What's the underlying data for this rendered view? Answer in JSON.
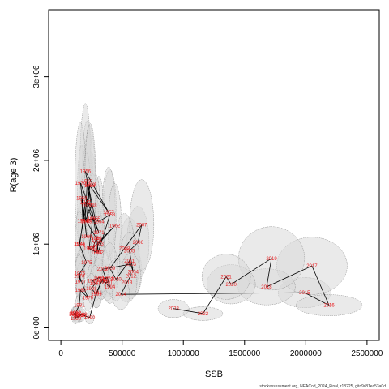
{
  "chart_data": {
    "type": "scatter",
    "xlabel": "SSB",
    "ylabel": "R(age 3)",
    "xlim": [
      -100000,
      2600000
    ],
    "ylim": [
      -150000,
      3800000
    ],
    "x_ticks": [
      0,
      500000,
      1000000,
      1500000,
      2000000,
      2500000
    ],
    "x_tick_labels": [
      "0",
      "500000",
      "1000000",
      "1500000",
      "2000000",
      "2500000"
    ],
    "y_ticks": [
      0,
      1000000,
      2000000,
      3000000
    ],
    "y_tick_labels": [
      "0e+00",
      "1e+06",
      "2e+06",
      "3e+06"
    ],
    "grid": false,
    "legend": "none",
    "colors": {
      "line": "#000000",
      "label": "#e8191c",
      "ellipse_fill": "#d9d9d9",
      "ellipse_stroke": "#8c8c8c"
    },
    "footer": "stockassessment.org, NEACod_2024_Final, r18225, gitc9c81ec53a0d",
    "points": [
      {
        "year": "1946",
        "ssb": 155000,
        "rec": 1000000,
        "sx": 20000,
        "sy": 250000
      },
      {
        "year": "1947",
        "ssb": 200000,
        "rec": 1500000,
        "sx": 20000,
        "sy": 350000
      },
      {
        "year": "1948",
        "ssb": 250000,
        "rec": 1460000,
        "sx": 25000,
        "sy": 350000
      },
      {
        "year": "1949",
        "ssb": 200000,
        "rec": 1280000,
        "sx": 20000,
        "sy": 300000
      },
      {
        "year": "1950",
        "ssb": 215000,
        "rec": 1750000,
        "sx": 25000,
        "sy": 400000
      },
      {
        "year": "1951",
        "ssb": 295000,
        "rec": 1050000,
        "sx": 25000,
        "sy": 250000
      },
      {
        "year": "1952",
        "ssb": 305000,
        "rec": 900000,
        "sx": 25000,
        "sy": 200000
      },
      {
        "year": "1953",
        "ssb": 400000,
        "rec": 1350000,
        "sx": 30000,
        "sy": 300000
      },
      {
        "year": "1954",
        "ssb": 310000,
        "rec": 1270000,
        "sx": 25000,
        "sy": 300000
      },
      {
        "year": "1955",
        "ssb": 280000,
        "rec": 1300000,
        "sx": 25000,
        "sy": 300000
      },
      {
        "year": "1956",
        "ssb": 200000,
        "rec": 1870000,
        "sx": 25000,
        "sy": 450000
      },
      {
        "year": "1957",
        "ssb": 390000,
        "rec": 1380000,
        "sx": 30000,
        "sy": 300000
      },
      {
        "year": "1958",
        "ssb": 235000,
        "rec": 1700000,
        "sx": 25000,
        "sy": 400000
      },
      {
        "year": "1959",
        "ssb": 210000,
        "rec": 1270000,
        "sx": 20000,
        "sy": 300000
      },
      {
        "year": "1960",
        "ssb": 290000,
        "rec": 1070000,
        "sx": 25000,
        "sy": 250000
      },
      {
        "year": "1961",
        "ssb": 260000,
        "rec": 950000,
        "sx": 25000,
        "sy": 220000
      },
      {
        "year": "1962",
        "ssb": 440000,
        "rec": 1220000,
        "sx": 30000,
        "sy": 280000
      },
      {
        "year": "1963",
        "ssb": 305000,
        "rec": 1000000,
        "sx": 25000,
        "sy": 220000
      },
      {
        "year": "1964",
        "ssb": 290000,
        "rec": 900000,
        "sx": 25000,
        "sy": 200000
      },
      {
        "year": "1965",
        "ssb": 230000,
        "rec": 950000,
        "sx": 25000,
        "sy": 220000
      },
      {
        "year": "1966",
        "ssb": 260000,
        "rec": 1300000,
        "sx": 25000,
        "sy": 300000
      },
      {
        "year": "1967",
        "ssb": 180000,
        "rec": 1280000,
        "sx": 20000,
        "sy": 300000
      },
      {
        "year": "1968",
        "ssb": 170000,
        "rec": 1550000,
        "sx": 20000,
        "sy": 350000
      },
      {
        "year": "1969",
        "ssb": 210000,
        "rec": 1090000,
        "sx": 20000,
        "sy": 250000
      },
      {
        "year": "1970",
        "ssb": 160000,
        "rec": 1730000,
        "sx": 25000,
        "sy": 400000
      },
      {
        "year": "1971",
        "ssb": 310000,
        "rec": 1140000,
        "sx": 25000,
        "sy": 250000
      },
      {
        "year": "1972",
        "ssb": 210000,
        "rec": 1460000,
        "sx": 20000,
        "sy": 350000
      },
      {
        "year": "1973",
        "ssb": 240000,
        "rec": 1720000,
        "sx": 25000,
        "sy": 400000
      },
      {
        "year": "1974",
        "ssb": 150000,
        "rec": 1000000,
        "sx": 20000,
        "sy": 220000
      },
      {
        "year": "1975",
        "ssb": 210000,
        "rec": 780000,
        "sx": 20000,
        "sy": 180000
      },
      {
        "year": "1976",
        "ssb": 155000,
        "rec": 650000,
        "sx": 20000,
        "sy": 150000
      },
      {
        "year": "1977",
        "ssb": 160000,
        "rec": 550000,
        "sx": 20000,
        "sy": 120000
      },
      {
        "year": "1978",
        "ssb": 150000,
        "rec": 620000,
        "sx": 20000,
        "sy": 140000
      },
      {
        "year": "1979",
        "ssb": 220000,
        "rec": 360000,
        "sx": 20000,
        "sy": 90000
      },
      {
        "year": "1980",
        "ssb": 160000,
        "rec": 450000,
        "sx": 20000,
        "sy": 100000
      },
      {
        "year": "1981",
        "ssb": 150000,
        "rec": 270000,
        "sx": 18000,
        "sy": 70000
      },
      {
        "year": "1982",
        "ssb": 120000,
        "rec": 180000,
        "sx": 15000,
        "sy": 50000
      },
      {
        "year": "1983",
        "ssb": 110000,
        "rec": 160000,
        "sx": 15000,
        "sy": 45000
      },
      {
        "year": "1984",
        "ssb": 110000,
        "rec": 170000,
        "sx": 15000,
        "sy": 45000
      },
      {
        "year": "1985",
        "ssb": 140000,
        "rec": 130000,
        "sx": 18000,
        "sy": 40000
      },
      {
        "year": "1986",
        "ssb": 160000,
        "rec": 150000,
        "sx": 18000,
        "sy": 40000
      },
      {
        "year": "1987",
        "ssb": 120000,
        "rec": 170000,
        "sx": 15000,
        "sy": 45000
      },
      {
        "year": "1988",
        "ssb": 120000,
        "rec": 110000,
        "sx": 15000,
        "sy": 35000
      },
      {
        "year": "1989",
        "ssb": 170000,
        "rec": 160000,
        "sx": 18000,
        "sy": 45000
      },
      {
        "year": "1990",
        "ssb": 235000,
        "rec": 120000,
        "sx": 20000,
        "sy": 40000
      },
      {
        "year": "1991",
        "ssb": 290000,
        "rec": 420000,
        "sx": 25000,
        "sy": 100000
      },
      {
        "year": "1992",
        "ssb": 340000,
        "rec": 580000,
        "sx": 28000,
        "sy": 130000
      },
      {
        "year": "1993",
        "ssb": 380000,
        "rec": 600000,
        "sx": 30000,
        "sy": 130000
      },
      {
        "year": "1994",
        "ssb": 400000,
        "rec": 490000,
        "sx": 30000,
        "sy": 110000
      },
      {
        "year": "1995",
        "ssb": 310000,
        "rec": 600000,
        "sx": 25000,
        "sy": 130000
      },
      {
        "year": "1996",
        "ssb": 260000,
        "rec": 560000,
        "sx": 25000,
        "sy": 120000
      },
      {
        "year": "1997",
        "ssb": 280000,
        "rec": 530000,
        "sx": 25000,
        "sy": 120000
      },
      {
        "year": "1998",
        "ssb": 250000,
        "rec": 470000,
        "sx": 22000,
        "sy": 100000
      },
      {
        "year": "1999",
        "ssb": 290000,
        "rec": 400000,
        "sx": 25000,
        "sy": 90000
      },
      {
        "year": "2000",
        "ssb": 330000,
        "rec": 550000,
        "sx": 28000,
        "sy": 120000
      },
      {
        "year": "2001",
        "ssb": 380000,
        "rec": 540000,
        "sx": 30000,
        "sy": 120000
      },
      {
        "year": "2002",
        "ssb": 340000,
        "rec": 700000,
        "sx": 30000,
        "sy": 150000
      },
      {
        "year": "2003",
        "ssb": 570000,
        "rec": 760000,
        "sx": 40000,
        "sy": 180000
      },
      {
        "year": "2004",
        "ssb": 590000,
        "rec": 670000,
        "sx": 40000,
        "sy": 160000
      },
      {
        "year": "2005",
        "ssb": 560000,
        "rec": 920000,
        "sx": 45000,
        "sy": 220000
      },
      {
        "year": "2006",
        "ssb": 630000,
        "rec": 1020000,
        "sx": 50000,
        "sy": 240000
      },
      {
        "year": "2007",
        "ssb": 660000,
        "rec": 1230000,
        "sx": 55000,
        "sy": 300000
      },
      {
        "year": "2008",
        "ssb": 520000,
        "rec": 950000,
        "sx": 45000,
        "sy": 230000
      },
      {
        "year": "2009",
        "ssb": 400000,
        "rec": 710000,
        "sx": 35000,
        "sy": 170000
      },
      {
        "year": "2010",
        "ssb": 450000,
        "rec": 580000,
        "sx": 38000,
        "sy": 140000
      },
      {
        "year": "2011",
        "ssb": 560000,
        "rec": 800000,
        "sx": 45000,
        "sy": 190000
      },
      {
        "year": "2012",
        "ssb": 570000,
        "rec": 620000,
        "sx": 45000,
        "sy": 150000
      },
      {
        "year": "2013",
        "ssb": 540000,
        "rec": 540000,
        "sx": 45000,
        "sy": 130000
      },
      {
        "year": "2014",
        "ssb": 490000,
        "rec": 400000,
        "sx": 40000,
        "sy": 100000
      },
      {
        "year": "2015",
        "ssb": 1990000,
        "rec": 420000,
        "sx": 120000,
        "sy": 100000
      },
      {
        "year": "2016",
        "ssb": 2190000,
        "rec": 270000,
        "sx": 150000,
        "sy": 70000
      },
      {
        "year": "2017",
        "ssb": 2050000,
        "rec": 740000,
        "sx": 160000,
        "sy": 190000
      },
      {
        "year": "2018",
        "ssb": 1680000,
        "rec": 490000,
        "sx": 130000,
        "sy": 120000
      },
      {
        "year": "2019",
        "ssb": 1720000,
        "rec": 830000,
        "sx": 150000,
        "sy": 210000
      },
      {
        "year": "2020",
        "ssb": 1390000,
        "rec": 520000,
        "sx": 110000,
        "sy": 130000
      },
      {
        "year": "2021",
        "ssb": 1350000,
        "rec": 610000,
        "sx": 110000,
        "sy": 150000
      },
      {
        "year": "2022",
        "ssb": 1160000,
        "rec": 170000,
        "sx": 90000,
        "sy": 45000
      },
      {
        "year": "2023",
        "ssb": 920000,
        "rec": 230000,
        "sx": 70000,
        "sy": 60000
      }
    ]
  }
}
